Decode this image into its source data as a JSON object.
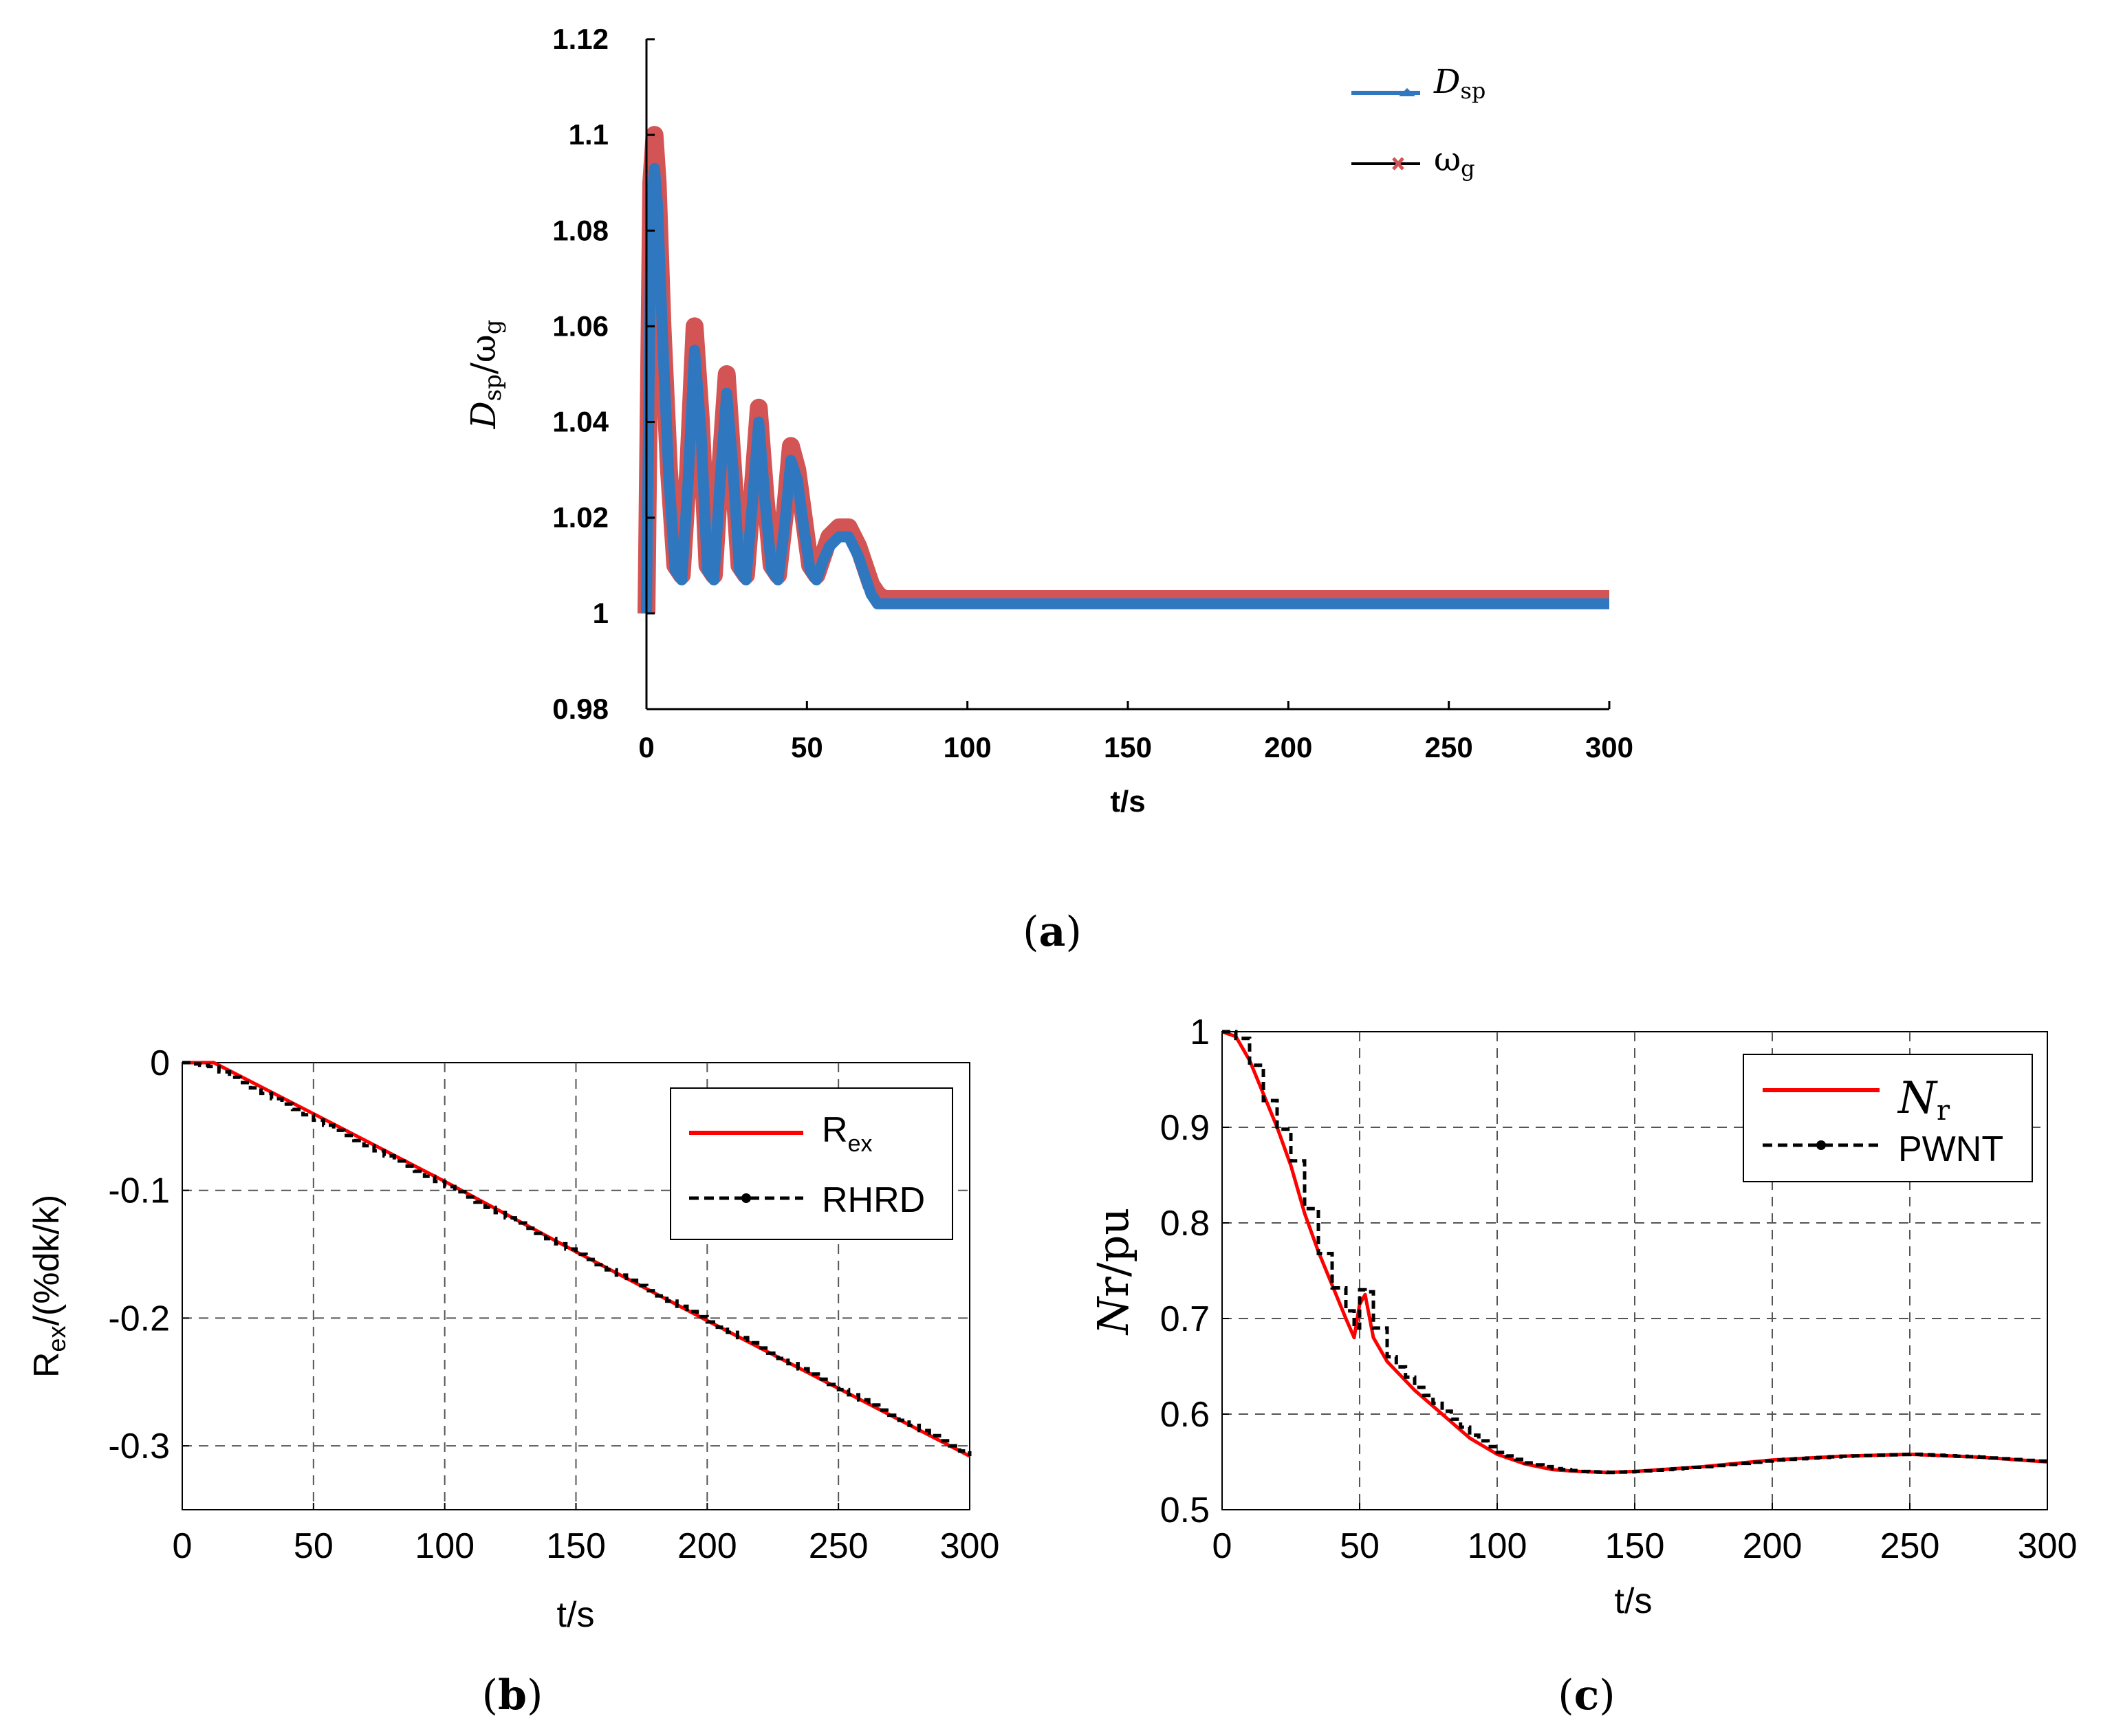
{
  "chart_data": [
    {
      "id": "a",
      "type": "line",
      "caption": "(a)",
      "caption_letter": "a",
      "xlabel": "t/s",
      "ylabel": "D",
      "ylabel_sub": "sp",
      "ylabel_mid": "/ω",
      "ylabel_sub2": "g",
      "xlim": [
        0,
        300
      ],
      "ylim": [
        0.98,
        1.12
      ],
      "xticks": [
        0,
        50,
        100,
        150,
        200,
        250,
        300
      ],
      "xtick_labels": [
        "0",
        "50",
        "100",
        "150",
        "200",
        "250",
        "300"
      ],
      "yticks": [
        0.98,
        1,
        1.02,
        1.04,
        1.06,
        1.08,
        1.1,
        1.12
      ],
      "ytick_labels": [
        "0.98",
        "1",
        "1.02",
        "1.04",
        "1.06",
        "1.08",
        "1.1",
        "1.12"
      ],
      "grid": false,
      "legend_position": "top-right",
      "series": [
        {
          "name": "ωg",
          "label_main": "ω",
          "label_sub": "g",
          "color": "#d35454",
          "marker": "x",
          "x": [
            0,
            0.5,
            1.5,
            2.5,
            3.5,
            5,
            7,
            9,
            11,
            13,
            15,
            17,
            19,
            21,
            23,
            25,
            27,
            29,
            31,
            33,
            35,
            37,
            39,
            41,
            43,
            45,
            47,
            49,
            51,
            53,
            55,
            57,
            60,
            63,
            66,
            68,
            70,
            72,
            74,
            80,
            100,
            150,
            200,
            250,
            300
          ],
          "y": [
            1.0,
            1.03,
            1.09,
            1.1,
            1.09,
            1.06,
            1.03,
            1.01,
            1.008,
            1.03,
            1.06,
            1.04,
            1.01,
            1.008,
            1.03,
            1.05,
            1.03,
            1.01,
            1.008,
            1.025,
            1.043,
            1.025,
            1.01,
            1.008,
            1.02,
            1.035,
            1.03,
            1.02,
            1.01,
            1.008,
            1.012,
            1.016,
            1.018,
            1.018,
            1.014,
            1.01,
            1.006,
            1.004,
            1.003,
            1.003,
            1.003,
            1.003,
            1.003,
            1.003,
            1.003
          ]
        },
        {
          "name": "Dsp",
          "label_main": "D",
          "label_sub": "sp",
          "color": "#2f78c0",
          "marker": "triangle",
          "x": [
            0,
            0.5,
            1.5,
            2.5,
            3.5,
            5,
            7,
            9,
            11,
            13,
            15,
            17,
            19,
            21,
            23,
            25,
            27,
            29,
            31,
            33,
            35,
            37,
            39,
            41,
            43,
            45,
            47,
            49,
            51,
            53,
            55,
            57,
            60,
            63,
            66,
            68,
            70,
            72,
            74,
            80,
            100,
            150,
            200,
            250,
            300
          ],
          "y": [
            1.0,
            1.03,
            1.085,
            1.093,
            1.085,
            1.058,
            1.028,
            1.009,
            1.007,
            1.028,
            1.055,
            1.038,
            1.009,
            1.007,
            1.028,
            1.046,
            1.03,
            1.009,
            1.007,
            1.023,
            1.04,
            1.023,
            1.009,
            1.007,
            1.018,
            1.032,
            1.028,
            1.018,
            1.009,
            1.007,
            1.011,
            1.014,
            1.016,
            1.016,
            1.012,
            1.008,
            1.004,
            1.002,
            1.002,
            1.002,
            1.002,
            1.002,
            1.002,
            1.002,
            1.002
          ]
        }
      ]
    },
    {
      "id": "b",
      "type": "line",
      "caption": "(b)",
      "caption_letter": "b",
      "xlabel": "t/s",
      "ylabel": "R",
      "ylabel_sub": "ex",
      "ylabel_rest": "/(%dk/k)",
      "xlim": [
        0,
        300
      ],
      "ylim": [
        -0.35,
        0
      ],
      "xticks": [
        0,
        50,
        100,
        150,
        200,
        250,
        300
      ],
      "xtick_labels": [
        "0",
        "50",
        "100",
        "150",
        "200",
        "250",
        "300"
      ],
      "yticks": [
        0,
        -0.1,
        -0.2,
        -0.3
      ],
      "ytick_labels": [
        "0",
        "-0.1",
        "-0.2",
        "-0.3"
      ],
      "grid": true,
      "legend_position": "top-right",
      "series": [
        {
          "name": "Rex",
          "label_main": "R",
          "label_sub": "ex",
          "color": "#ff0000",
          "style": "solid",
          "x": [
            0,
            12,
            50,
            100,
            150,
            200,
            250,
            300
          ],
          "y": [
            0,
            0,
            -0.04,
            -0.093,
            -0.148,
            -0.202,
            -0.255,
            -0.308
          ]
        },
        {
          "name": "RHRD",
          "label_main": "RHRD",
          "label_sub": "",
          "color": "#000000",
          "style": "dashed-stairs",
          "x": [
            0,
            10,
            50,
            100,
            150,
            200,
            250,
            300
          ],
          "y": [
            0,
            -0.003,
            -0.045,
            -0.097,
            -0.15,
            -0.203,
            -0.256,
            -0.308
          ]
        }
      ]
    },
    {
      "id": "c",
      "type": "line",
      "caption": "(c)",
      "caption_letter": "c",
      "xlabel": "t/s",
      "ylabel": "Nr/pu",
      "ylabel_italic": "N",
      "ylabel_rest": "r/pu",
      "xlim": [
        0,
        300
      ],
      "ylim": [
        0.5,
        1
      ],
      "xticks": [
        0,
        50,
        100,
        150,
        200,
        250,
        300
      ],
      "xtick_labels": [
        "0",
        "50",
        "100",
        "150",
        "200",
        "250",
        "300"
      ],
      "yticks": [
        0.5,
        0.6,
        0.7,
        0.8,
        0.9,
        1
      ],
      "ytick_labels": [
        "0.5",
        "0.6",
        "0.7",
        "0.8",
        "0.9",
        "1"
      ],
      "grid": true,
      "legend_position": "top-right",
      "series": [
        {
          "name": "Nr",
          "label_main": "N",
          "label_sub": "r",
          "color": "#ff0000",
          "style": "solid",
          "x": [
            0,
            5,
            10,
            15,
            20,
            25,
            30,
            35,
            40,
            45,
            48,
            50,
            52,
            55,
            60,
            70,
            80,
            90,
            100,
            110,
            120,
            130,
            140,
            150,
            160,
            175,
            200,
            225,
            250,
            275,
            300
          ],
          "y": [
            1.0,
            0.995,
            0.97,
            0.935,
            0.9,
            0.86,
            0.81,
            0.77,
            0.735,
            0.7,
            0.68,
            0.715,
            0.725,
            0.68,
            0.655,
            0.625,
            0.6,
            0.575,
            0.558,
            0.548,
            0.542,
            0.54,
            0.539,
            0.54,
            0.542,
            0.545,
            0.552,
            0.556,
            0.558,
            0.555,
            0.55
          ]
        },
        {
          "name": "PWNT",
          "label_main": "PWNT",
          "label_sub": "",
          "color": "#000000",
          "style": "dashed-stairs",
          "x": [
            0,
            5,
            10,
            15,
            20,
            25,
            30,
            35,
            40,
            45,
            48,
            50,
            52,
            55,
            60,
            70,
            80,
            90,
            100,
            110,
            120,
            130,
            140,
            150,
            160,
            175,
            200,
            225,
            250,
            275,
            300
          ],
          "y": [
            1.0,
            0.993,
            0.965,
            0.928,
            0.898,
            0.865,
            0.815,
            0.768,
            0.732,
            0.708,
            0.69,
            0.73,
            0.728,
            0.69,
            0.66,
            0.628,
            0.603,
            0.578,
            0.56,
            0.549,
            0.543,
            0.54,
            0.539,
            0.54,
            0.542,
            0.545,
            0.552,
            0.556,
            0.558,
            0.555,
            0.55
          ]
        }
      ]
    }
  ]
}
